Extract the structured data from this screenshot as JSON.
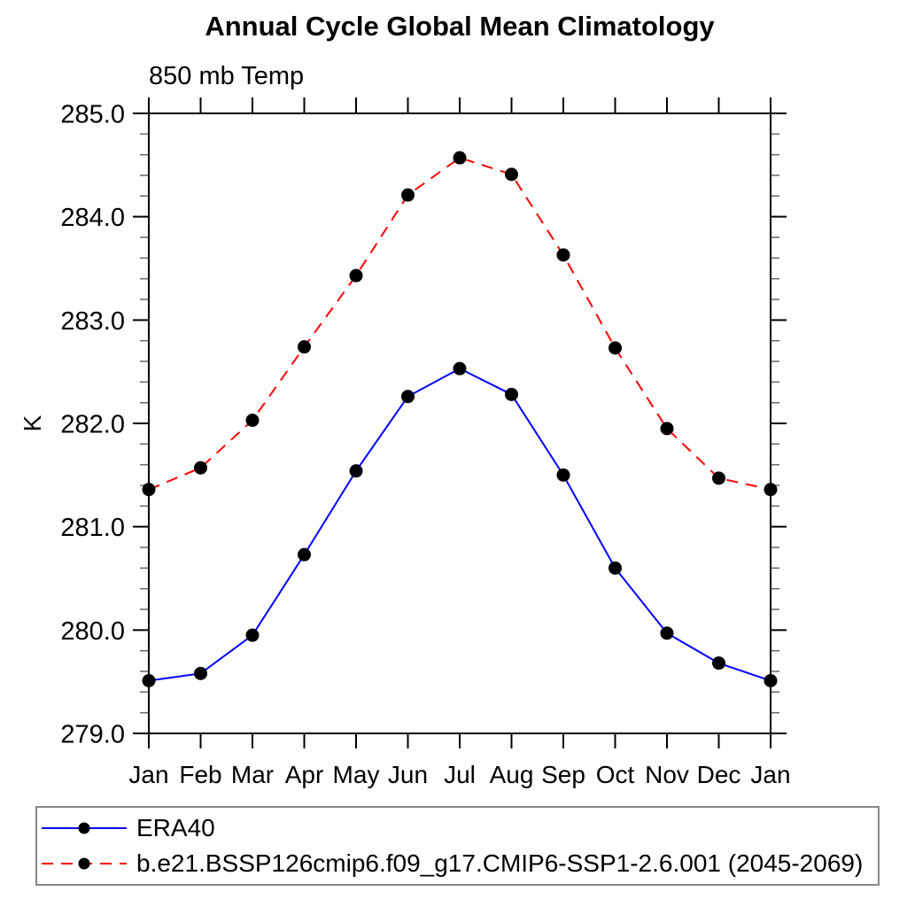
{
  "chart_data": {
    "type": "line",
    "title": "Annual Cycle Global Mean Climatology",
    "subtitle": "850 mb Temp",
    "ylabel": "K",
    "xlabel": "",
    "categories": [
      "Jan",
      "Feb",
      "Mar",
      "Apr",
      "May",
      "Jun",
      "Jul",
      "Aug",
      "Sep",
      "Oct",
      "Nov",
      "Dec",
      "Jan"
    ],
    "ylim": [
      279.0,
      285.0
    ],
    "ytick_major_step": 1.0,
    "ytick_minor_step": 0.2,
    "ytick_labels": [
      "279.0",
      "280.0",
      "281.0",
      "282.0",
      "283.0",
      "284.0",
      "285.0"
    ],
    "grid": false,
    "legend_position": "bottom-left-box",
    "marker": "filled-circle",
    "marker_color": "#000000",
    "series": [
      {
        "name": "ERA40",
        "color": "#0000ff",
        "line_style": "solid",
        "values": [
          279.51,
          279.58,
          279.95,
          280.73,
          281.54,
          282.26,
          282.53,
          282.28,
          281.5,
          280.6,
          279.97,
          279.68,
          279.51
        ]
      },
      {
        "name": "b.e21.BSSP126cmip6.f09_g17.CMIP6-SSP1-2.6.001 (2045-2069)",
        "color": "#ff0000",
        "line_style": "dashed",
        "values": [
          281.36,
          281.57,
          282.03,
          282.74,
          283.43,
          284.21,
          284.57,
          284.41,
          283.63,
          282.73,
          281.95,
          281.47,
          281.36
        ]
      }
    ]
  }
}
